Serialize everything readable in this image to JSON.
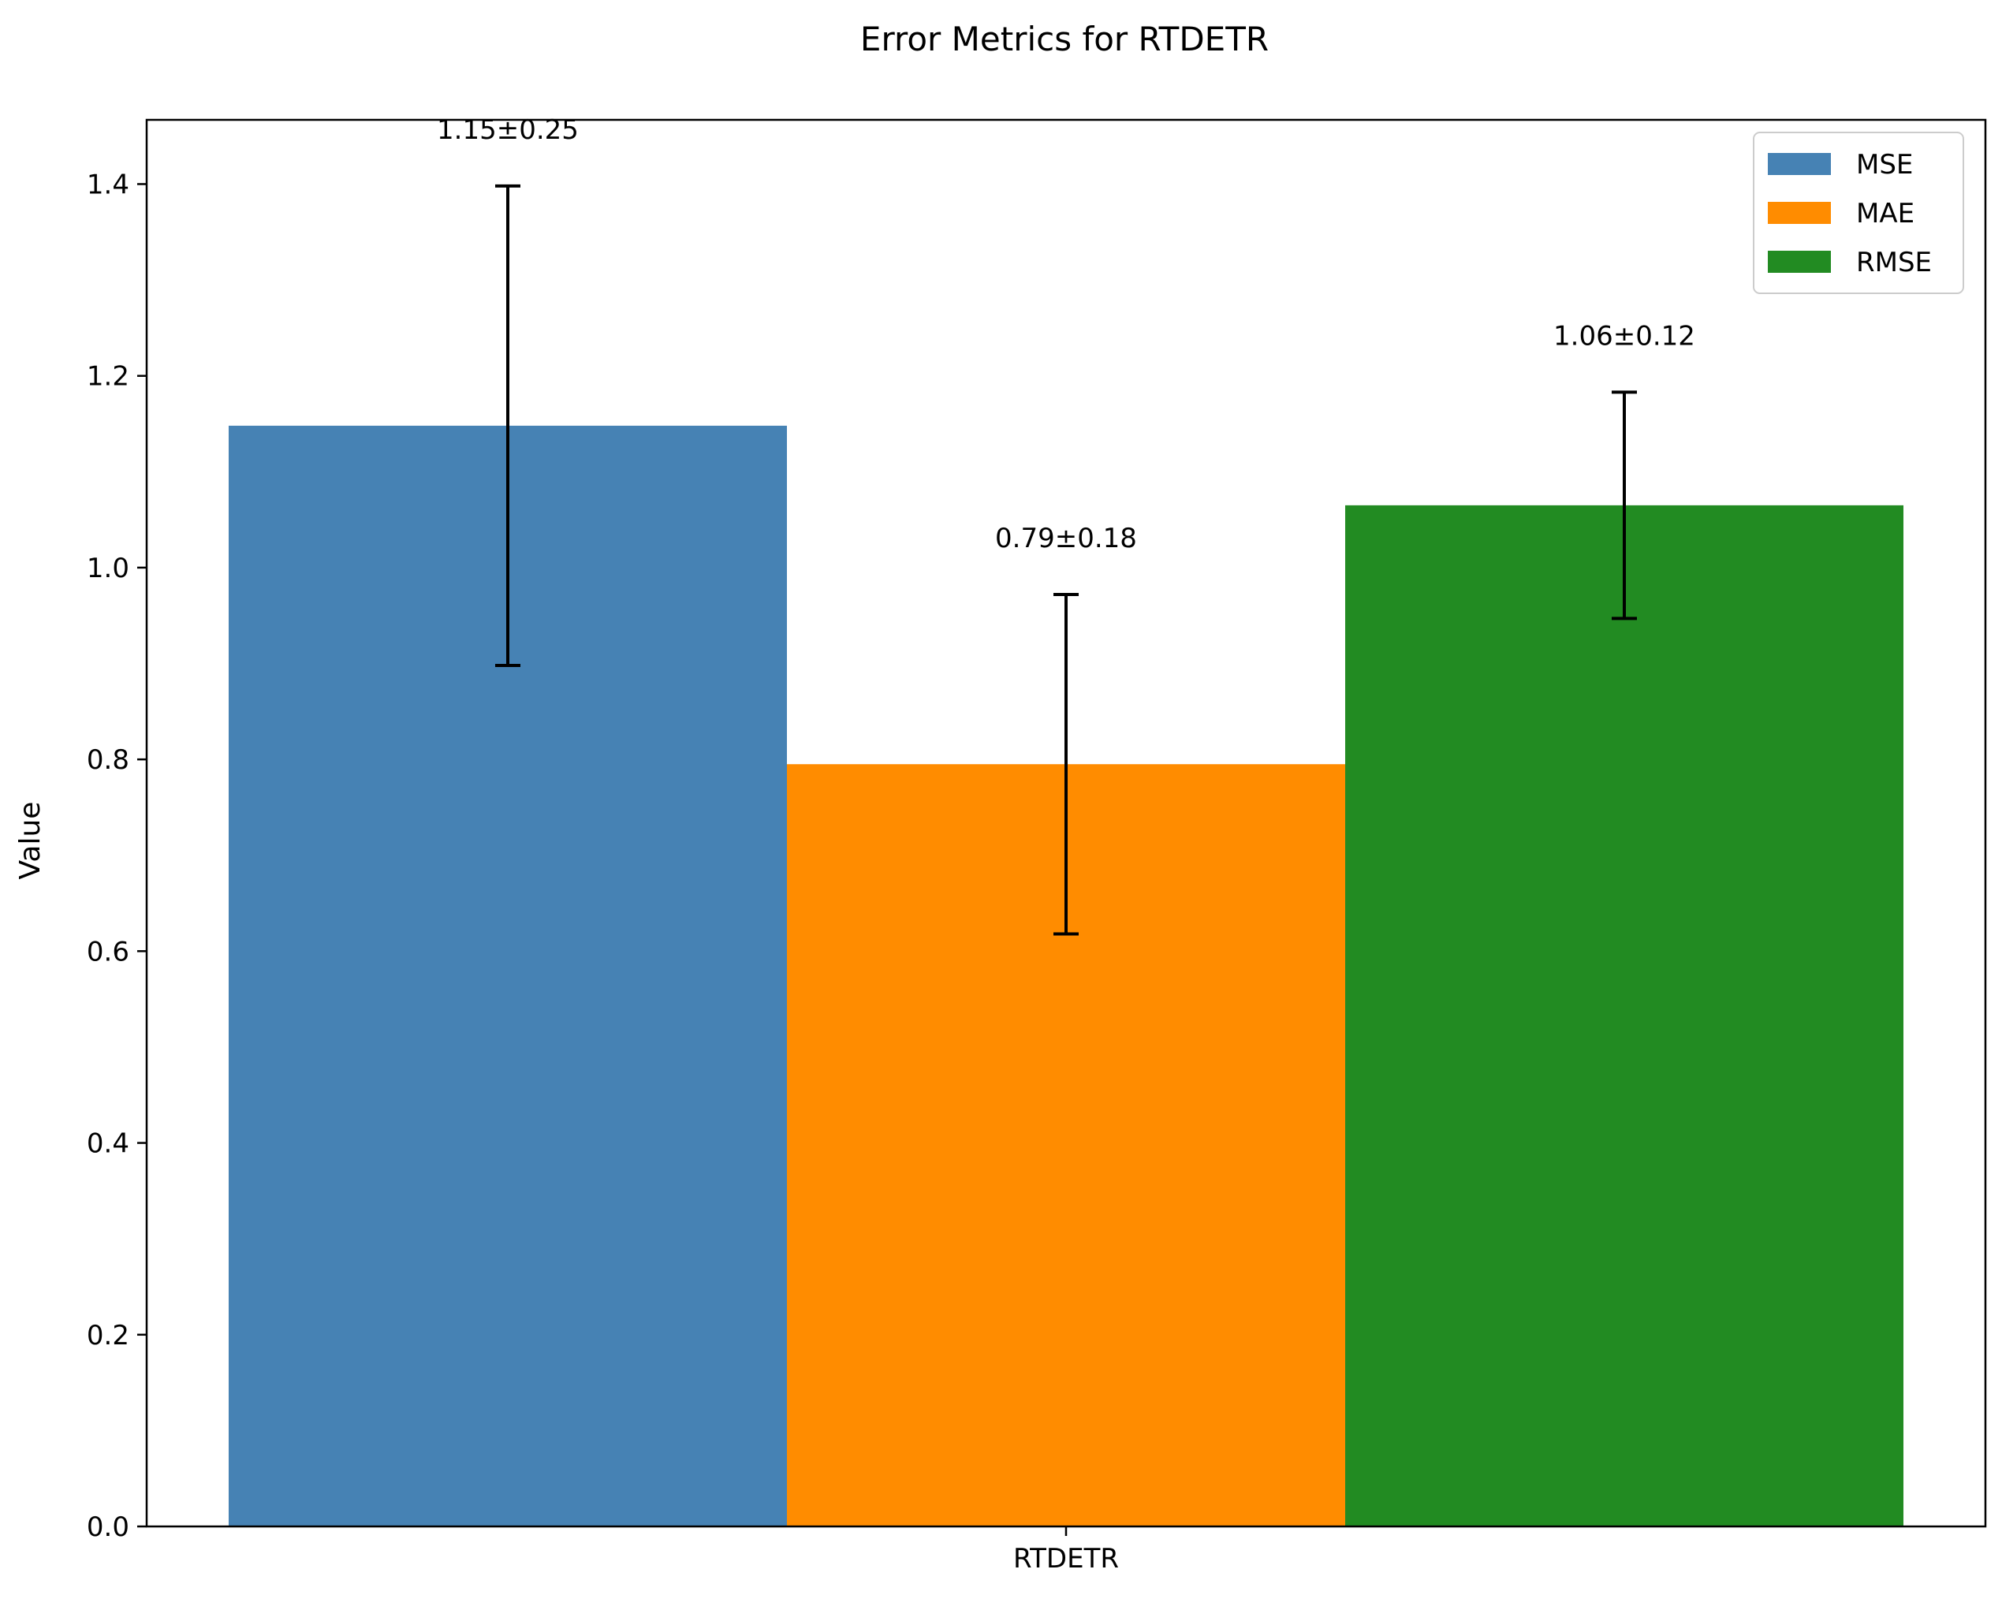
{
  "chart_data": {
    "type": "bar",
    "title": "Error Metrics for RTDETR",
    "xlabel": "",
    "ylabel": "Value",
    "categories": [
      "RTDETR"
    ],
    "ylim": [
      0,
      1.467
    ],
    "yticks": [
      0.0,
      0.2,
      0.4,
      0.6,
      0.8,
      1.0,
      1.2,
      1.4
    ],
    "ytick_labels": [
      "0.0",
      "0.2",
      "0.4",
      "0.6",
      "0.8",
      "1.0",
      "1.2",
      "1.4"
    ],
    "grid": false,
    "legend_position": "top-right",
    "series": [
      {
        "name": "MSE",
        "values": [
          1.148
        ],
        "error": [
          0.25
        ],
        "label": "1.15±0.25",
        "color": "#4682B4"
      },
      {
        "name": "MAE",
        "values": [
          0.795
        ],
        "error": [
          0.177
        ],
        "label": "0.79±0.18",
        "color": "#FF8C00"
      },
      {
        "name": "RMSE",
        "values": [
          1.065
        ],
        "error": [
          0.118
        ],
        "label": "1.06±0.12",
        "color": "#228B22"
      }
    ]
  }
}
